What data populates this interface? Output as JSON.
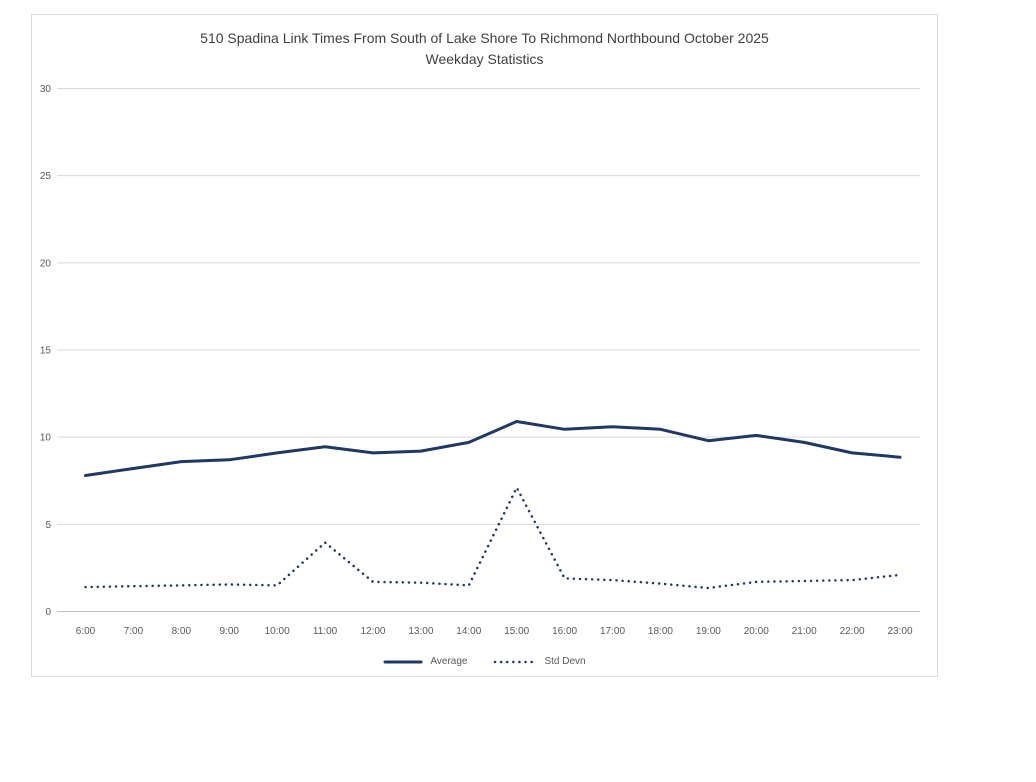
{
  "chart_data": {
    "type": "line",
    "title": "510 Spadina Link Times From South of Lake Shore To Richmond Northbound October 2025",
    "subtitle": "Weekday Statistics",
    "categories": [
      "6:00",
      "7:00",
      "8:00",
      "9:00",
      "10:00",
      "11:00",
      "12:00",
      "13:00",
      "14:00",
      "15:00",
      "16:00",
      "17:00",
      "18:00",
      "19:00",
      "20:00",
      "21:00",
      "22:00",
      "23:00"
    ],
    "series": [
      {
        "name": "Average",
        "style": "solid",
        "color": "#1f3864",
        "values": [
          7.8,
          8.2,
          8.6,
          8.7,
          9.1,
          9.45,
          9.1,
          9.2,
          9.7,
          10.9,
          10.45,
          10.6,
          10.45,
          9.8,
          10.1,
          9.7,
          9.1,
          8.85
        ]
      },
      {
        "name": "Std Devn",
        "style": "dotted",
        "color": "#1f3864",
        "values": [
          1.4,
          1.45,
          1.5,
          1.55,
          1.5,
          3.95,
          1.7,
          1.65,
          1.5,
          7.1,
          1.9,
          1.8,
          1.6,
          1.35,
          1.7,
          1.75,
          1.8,
          2.1
        ]
      }
    ],
    "xlabel": "",
    "ylabel": "",
    "ylim": [
      0,
      30
    ],
    "yticks": [
      0,
      5,
      10,
      15,
      20,
      25,
      30
    ],
    "grid": true,
    "legend_position": "bottom",
    "colors": {
      "series_line": "#1f3864",
      "gridline": "#d9d9d9",
      "axis_line": "#bfbfbf",
      "tick_label": "#595959",
      "title_text": "#404040",
      "frame_border": "#d9d9d9",
      "background": "#ffffff"
    }
  }
}
